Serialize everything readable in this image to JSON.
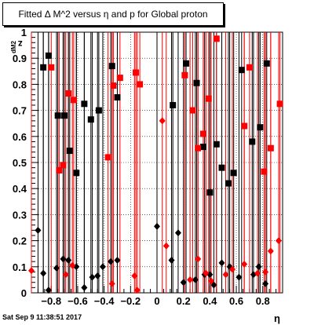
{
  "title": "Fitted Δ M^2 versus η and p for Global proton",
  "timestamp": "Sat Sep  9 11:38:51 2017",
  "xlabel": "η",
  "ylabel": "z",
  "ylabel_sub": "dM2",
  "colors": {
    "black_series": "#000000",
    "red_series": "#ff0000",
    "frame": "#000000",
    "grid": "#000000"
  },
  "chart_data": {
    "type": "scatter",
    "title": "Fitted Δ M^2 versus η and p for Global proton",
    "xlabel": "η",
    "ylabel": "z_dM2",
    "xlim": [
      -0.95,
      0.95
    ],
    "ylim": [
      0,
      1
    ],
    "grid": true,
    "xticks": [
      -0.8,
      -0.6,
      -0.4,
      -0.2,
      0,
      0.2,
      0.4,
      0.6,
      0.8
    ],
    "xtick_labels": [
      "−0.8",
      "−0.6",
      "−0.4",
      "−0.2",
      "0",
      "0.2",
      "0.4",
      "0.6",
      "0.8"
    ],
    "yticks": [
      0,
      0.1,
      0.2,
      0.3,
      0.4,
      0.5,
      0.6,
      0.7,
      0.8,
      0.9,
      1
    ],
    "ytick_labels": [
      "0",
      "0.1",
      "0.2",
      "0.3",
      "0.4",
      "0.5",
      "0.6",
      "0.7",
      "0.8",
      "0.9",
      "1"
    ],
    "series": [
      {
        "marker": "square",
        "color": "#000000",
        "points": [
          [
            -0.86,
            0.865
          ],
          [
            -0.82,
            0.91
          ],
          [
            -0.75,
            0.68
          ],
          [
            -0.7,
            0.68
          ],
          [
            -0.66,
            0.545
          ],
          [
            -0.61,
            0.46
          ],
          [
            -0.55,
            0.725
          ],
          [
            -0.5,
            0.665
          ],
          [
            -0.44,
            0.7
          ],
          [
            -0.34,
            0.87
          ],
          [
            -0.3,
            0.75
          ],
          [
            0.12,
            0.72
          ],
          [
            0.22,
            0.88
          ],
          [
            0.3,
            0.805
          ],
          [
            0.35,
            0.56
          ],
          [
            0.4,
            0.385
          ],
          [
            0.45,
            0.57
          ],
          [
            0.49,
            0.48
          ],
          [
            0.54,
            0.42
          ],
          [
            0.58,
            0.46
          ],
          [
            0.64,
            0.855
          ],
          [
            0.72,
            0.58
          ],
          [
            0.78,
            0.635
          ],
          [
            0.83,
            0.88
          ]
        ]
      },
      {
        "marker": "square",
        "color": "#ff0000",
        "points": [
          [
            -0.8,
            0.865
          ],
          [
            -0.74,
            0.47
          ],
          [
            -0.71,
            0.49
          ],
          [
            -0.67,
            0.765
          ],
          [
            -0.63,
            0.74
          ],
          [
            -0.37,
            0.52
          ],
          [
            -0.33,
            0.795
          ],
          [
            -0.28,
            0.825
          ],
          [
            -0.16,
            0.845
          ],
          [
            -0.13,
            0.8
          ],
          [
            0.21,
            0.835
          ],
          [
            0.27,
            0.7
          ],
          [
            0.31,
            0.555
          ],
          [
            0.35,
            0.61
          ],
          [
            0.39,
            0.745
          ],
          [
            0.45,
            0.975
          ],
          [
            0.66,
            0.64
          ],
          [
            0.7,
            0.865
          ],
          [
            0.81,
            0.465
          ],
          [
            0.86,
            0.555
          ],
          [
            0.93,
            0.725
          ]
        ]
      },
      {
        "marker": "diamond",
        "color": "#000000",
        "points": [
          [
            -0.9,
            0.24
          ],
          [
            -0.86,
            0.075
          ],
          [
            -0.82,
            0.01
          ],
          [
            -0.76,
            0.095
          ],
          [
            -0.71,
            0.13
          ],
          [
            -0.67,
            0.125
          ],
          [
            -0.61,
            0.1
          ],
          [
            -0.55,
            0.02
          ],
          [
            -0.49,
            0.06
          ],
          [
            -0.45,
            0.065
          ],
          [
            -0.41,
            0.1
          ],
          [
            -0.35,
            0.12
          ],
          [
            -0.3,
            0.125
          ],
          [
            0.0,
            0.255
          ],
          [
            0.11,
            0.125
          ],
          [
            0.16,
            0.23
          ],
          [
            0.2,
            0.04
          ],
          [
            0.29,
            0.05
          ],
          [
            0.36,
            0.07
          ],
          [
            0.4,
            0.07
          ],
          [
            0.43,
            0.03
          ],
          [
            0.49,
            0.115
          ],
          [
            0.55,
            0.1
          ],
          [
            0.62,
            0.06
          ],
          [
            0.73,
            0.07
          ],
          [
            0.77,
            0.1
          ],
          [
            0.82,
            0.035
          ]
        ]
      },
      {
        "marker": "diamond",
        "color": "#ff0000",
        "points": [
          [
            -0.95,
            0.085
          ],
          [
            -0.69,
            0.07
          ],
          [
            -0.64,
            0.105
          ],
          [
            -0.34,
            0.035
          ],
          [
            -0.15,
            0.01
          ],
          [
            -0.17,
            0.065
          ],
          [
            0.04,
            0.66
          ],
          [
            0.07,
            0.18
          ],
          [
            0.25,
            0.05
          ],
          [
            0.31,
            0.13
          ],
          [
            0.37,
            0.075
          ],
          [
            0.41,
            0.045
          ],
          [
            0.52,
            0.07
          ],
          [
            0.57,
            0.09
          ],
          [
            0.66,
            0.11
          ],
          [
            0.76,
            0.075
          ],
          [
            0.82,
            0.08
          ],
          [
            0.86,
            0.16
          ],
          [
            0.92,
            0.2
          ]
        ]
      }
    ]
  }
}
